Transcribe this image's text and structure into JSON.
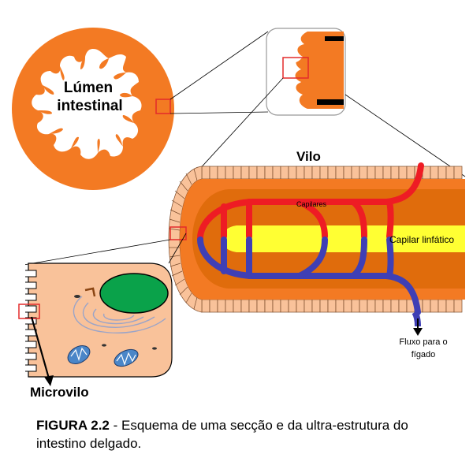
{
  "labels": {
    "lumen_line1": "Lúmen",
    "lumen_line2": "intestinal",
    "villus": "Vilo",
    "capillaries": "Capilares",
    "lymphatic": "Capilar linfático",
    "flow_line1": "Fluxo para o",
    "flow_line2": "fígado",
    "microvillus": "Microvilo"
  },
  "caption": {
    "figure": "FIGURA 2.2",
    "text": " - Esquema de uma secção e da ultra-estrutura do intestino delgado."
  },
  "colors": {
    "tissue_orange": "#f37a23",
    "tissue_dark": "#e06c0c",
    "cell_peach": "#f9c29a",
    "artery_red": "#ee1c24",
    "vein_blue": "#3f3fb5",
    "lymph_yellow": "#ffff33",
    "nucleus_green": "#0aa24a",
    "mito_blue": "#4a86c8",
    "highlight_red": "#e32b2b"
  }
}
